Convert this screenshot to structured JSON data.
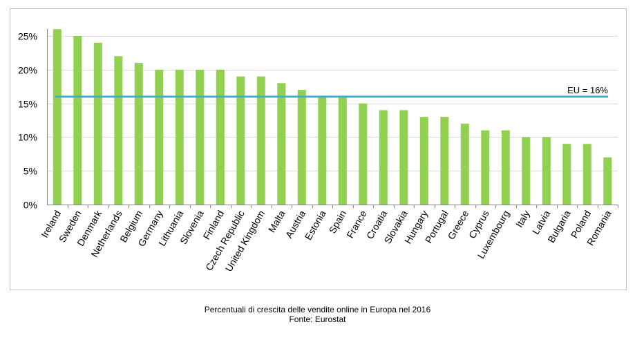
{
  "chart_data": {
    "type": "bar",
    "categories": [
      "Ireland",
      "Sweden",
      "Denmark",
      "Netherlands",
      "Belgium",
      "Germany",
      "Lithuania",
      "Slovenia",
      "Finland",
      "Czech Republic",
      "United Kingdom",
      "Malta",
      "Austria",
      "Estonia",
      "Spain",
      "France",
      "Croatia",
      "Slovakia",
      "Hungary",
      "Portugal",
      "Greece",
      "Cyprus",
      "Luxembourg",
      "Italy",
      "Latvia",
      "Bulgaria",
      "Poland",
      "Romania"
    ],
    "values": [
      26,
      25,
      24,
      22,
      21,
      20,
      20,
      20,
      20,
      19,
      19,
      18,
      17,
      16,
      16,
      15,
      14,
      14,
      13,
      13,
      12,
      11,
      11,
      10,
      10,
      9,
      9,
      7
    ],
    "ylim": [
      0,
      25
    ],
    "yticks": [
      0,
      5,
      10,
      15,
      20,
      25
    ],
    "ytick_labels": [
      "0%",
      "5%",
      "10%",
      "15%",
      "20%",
      "25%"
    ],
    "grid": true,
    "reference_line": {
      "value": 16,
      "label": "EU = 16%"
    },
    "colors": {
      "bar": "#92d050",
      "reference_line": "#4bacc6",
      "grid": "#d9d9d9",
      "axis": "#868686",
      "text": "#000000"
    }
  },
  "caption": {
    "line1": "Percentuali di crescita delle vendite online in Europa nel 2016",
    "line2": "Fonte: Eurostat"
  }
}
